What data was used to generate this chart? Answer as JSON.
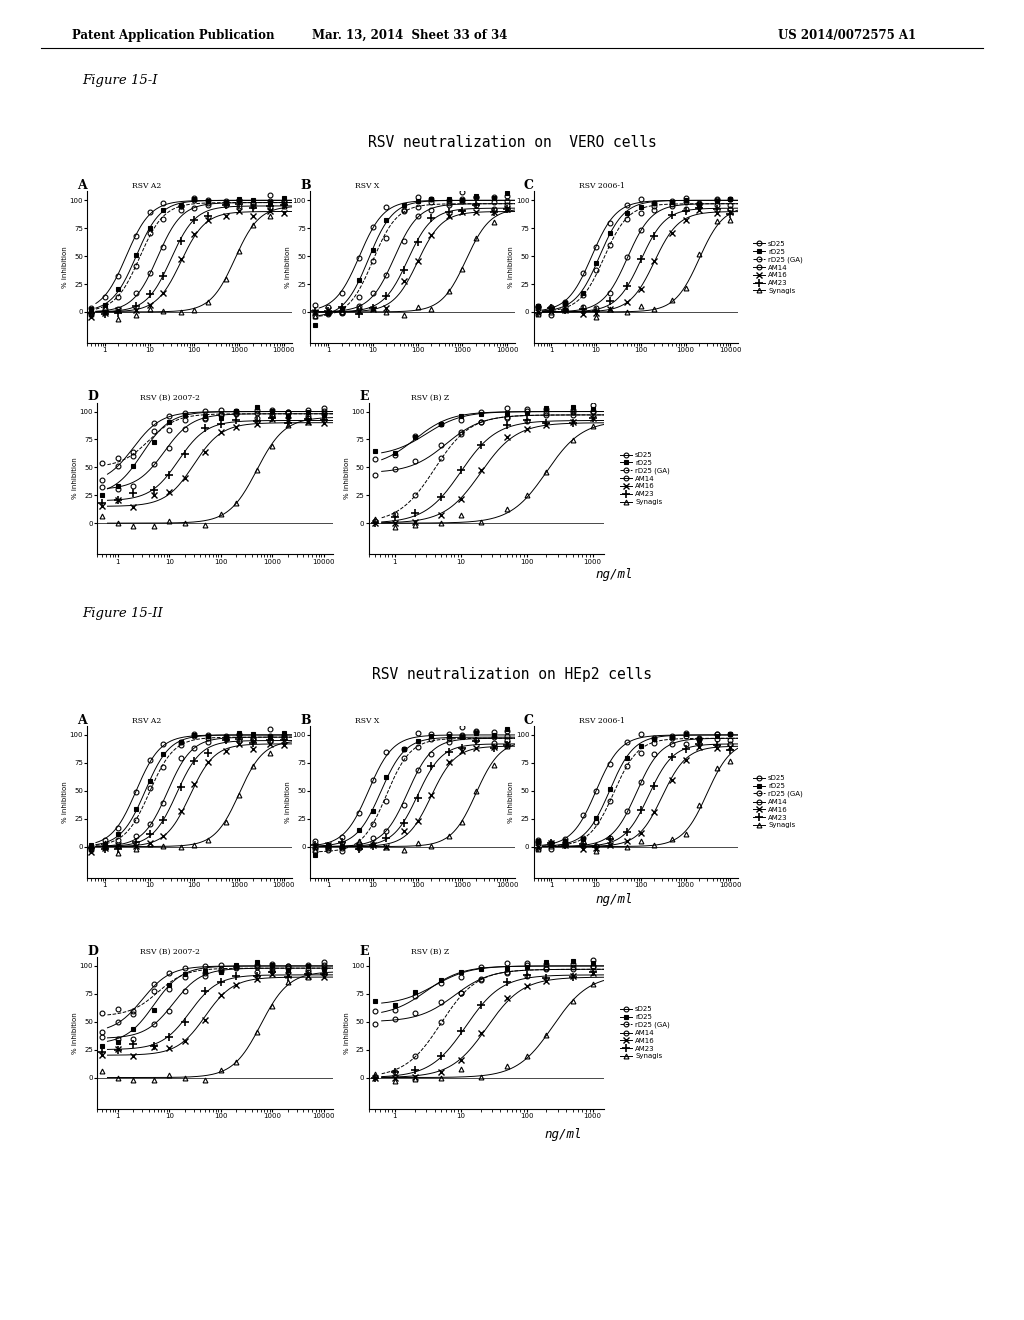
{
  "header_left": "Patent Application Publication",
  "header_mid": "Mar. 13, 2014  Sheet 33 of 34",
  "header_right": "US 2014/0072575 A1",
  "fig1_label": "Figure 15-I",
  "fig2_label": "Figure 15-II",
  "title1": "RSV neutralization on  VERO cells",
  "title2": "RSV neutralization on HEp2 cells",
  "legend_entries": [
    "sD25",
    "rD25",
    "rD25 (GA)",
    "AM14",
    "AM16",
    "AM23",
    "Synagis"
  ],
  "subplot_labels_row1": [
    "A",
    "B",
    "C"
  ],
  "subplot_titles_row1": [
    "RSV A2",
    "RSV X",
    "RSV 2006-1"
  ],
  "subplot_labels_row2": [
    "D",
    "E"
  ],
  "subplot_titles_row2_vero": [
    "RSV (B) 2007-2",
    "RSV (B) Z"
  ],
  "subplot_titles_row2_hep2": [
    "RSV (B) 2007-2",
    "RSV (B) Z"
  ],
  "ylabel": "% inhibition",
  "xlabel": "ng/ml",
  "background_color": "#ffffff",
  "text_color": "#000000"
}
